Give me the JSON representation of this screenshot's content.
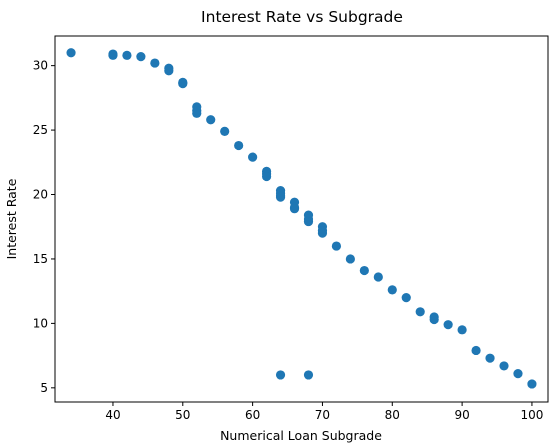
{
  "chart_data": {
    "type": "scatter",
    "title": "Interest Rate vs Subgrade",
    "xlabel": "Numerical Loan Subgrade",
    "ylabel": "Interest Rate",
    "xlim": [
      31.7,
      102.3
    ],
    "ylim": [
      3.9,
      32.3
    ],
    "xticks": [
      40,
      50,
      60,
      70,
      80,
      90,
      100
    ],
    "yticks": [
      5,
      10,
      15,
      20,
      25,
      30
    ],
    "grid": false,
    "legend": "none",
    "marker_color": "#1f77b4",
    "series": [
      {
        "x": [
          34,
          40,
          40,
          42,
          44,
          46,
          48,
          48,
          50,
          50,
          52,
          52,
          52,
          54,
          56,
          58,
          60,
          62,
          62,
          62,
          64,
          64,
          64,
          64,
          66,
          66,
          66,
          68,
          68,
          68,
          70,
          70,
          70,
          72,
          74,
          76,
          78,
          80,
          82,
          84,
          86,
          86,
          88,
          90,
          92,
          94,
          96,
          98,
          100,
          64,
          68
        ],
        "y": [
          31.0,
          30.9,
          30.8,
          30.8,
          30.7,
          30.2,
          29.8,
          29.6,
          28.7,
          28.6,
          26.8,
          26.5,
          26.3,
          25.8,
          24.9,
          23.8,
          22.9,
          21.8,
          21.6,
          21.4,
          20.3,
          20.1,
          19.9,
          19.8,
          19.4,
          19.0,
          18.9,
          18.4,
          18.1,
          17.9,
          17.5,
          17.2,
          17.0,
          16.0,
          15.0,
          14.1,
          13.6,
          12.6,
          12.0,
          10.9,
          10.5,
          10.3,
          9.9,
          9.5,
          7.9,
          7.3,
          6.7,
          6.1,
          5.3,
          6.0,
          6.0
        ]
      }
    ]
  }
}
